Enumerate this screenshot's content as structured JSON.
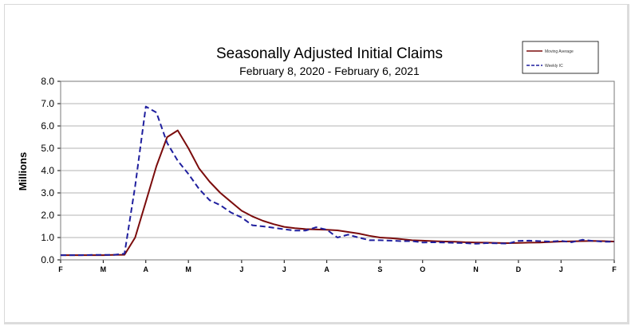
{
  "chart_data": {
    "type": "line",
    "title": "Seasonally Adjusted Initial Claims",
    "subtitle": "February 8, 2020 - February 6, 2021",
    "ylabel": "Millions",
    "xlabel": "",
    "ylim": [
      0,
      8
    ],
    "yticks": [
      "0.0",
      "1.0",
      "2.0",
      "3.0",
      "4.0",
      "5.0",
      "6.0",
      "7.0",
      "8.0"
    ],
    "xticks": [
      {
        "label": "F",
        "week": 0
      },
      {
        "label": "M",
        "week": 4
      },
      {
        "label": "A",
        "week": 8
      },
      {
        "label": "M",
        "week": 12
      },
      {
        "label": "J",
        "week": 17
      },
      {
        "label": "J",
        "week": 21
      },
      {
        "label": "A",
        "week": 25
      },
      {
        "label": "S",
        "week": 30
      },
      {
        "label": "O",
        "week": 34
      },
      {
        "label": "N",
        "week": 39
      },
      {
        "label": "D",
        "week": 43
      },
      {
        "label": "J",
        "week": 47
      },
      {
        "label": "F",
        "week": 52
      }
    ],
    "grid": true,
    "legend_position": "top-right",
    "series": [
      {
        "name": "Moving Average",
        "color": "#7b0c0c",
        "dash": "solid",
        "values": [
          0.21,
          0.21,
          0.21,
          0.21,
          0.21,
          0.22,
          0.23,
          1.0,
          2.6,
          4.2,
          5.5,
          5.8,
          5.0,
          4.1,
          3.5,
          3.0,
          2.6,
          2.2,
          1.95,
          1.75,
          1.6,
          1.48,
          1.42,
          1.38,
          1.36,
          1.35,
          1.32,
          1.25,
          1.18,
          1.08,
          1.0,
          0.97,
          0.93,
          0.88,
          0.86,
          0.84,
          0.82,
          0.81,
          0.79,
          0.78,
          0.77,
          0.76,
          0.75,
          0.76,
          0.77,
          0.78,
          0.8,
          0.82,
          0.83,
          0.84,
          0.85,
          0.84,
          0.82
        ]
      },
      {
        "name": "Weekly IC",
        "color": "#1f1f9e",
        "dash": "dashed",
        "values": [
          0.21,
          0.21,
          0.21,
          0.22,
          0.22,
          0.22,
          0.28,
          3.3,
          6.87,
          6.6,
          5.24,
          4.44,
          3.85,
          3.18,
          2.67,
          2.45,
          2.12,
          1.9,
          1.55,
          1.5,
          1.44,
          1.37,
          1.31,
          1.31,
          1.46,
          1.35,
          1.0,
          1.13,
          1.0,
          0.88,
          0.88,
          0.86,
          0.84,
          0.84,
          0.78,
          0.79,
          0.78,
          0.76,
          0.75,
          0.72,
          0.75,
          0.74,
          0.73,
          0.85,
          0.86,
          0.84,
          0.82,
          0.85,
          0.79,
          0.9,
          0.85,
          0.81,
          0.81
        ]
      }
    ]
  }
}
